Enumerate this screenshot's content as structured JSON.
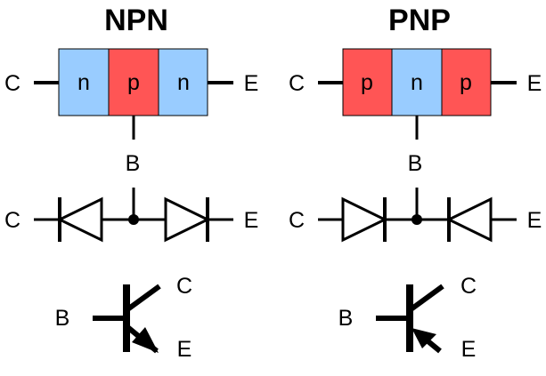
{
  "colors": {
    "n_region": "#99ccff",
    "p_region": "#ff5555",
    "outline": "#000000"
  },
  "npn": {
    "title": "NPN",
    "layers": [
      "n",
      "p",
      "n"
    ],
    "labels": {
      "collector": "C",
      "emitter": "E",
      "base": "B"
    },
    "diode_labels": {
      "collector": "C",
      "emitter": "E"
    },
    "symbol_labels": {
      "base": "B",
      "collector": "C",
      "emitter": "E"
    }
  },
  "pnp": {
    "title": "PNP",
    "layers": [
      "p",
      "n",
      "p"
    ],
    "labels": {
      "collector": "C",
      "emitter": "E",
      "base": "B"
    },
    "diode_labels": {
      "collector": "C",
      "emitter": "E"
    },
    "symbol_labels": {
      "base": "B",
      "collector": "C",
      "emitter": "E"
    }
  }
}
